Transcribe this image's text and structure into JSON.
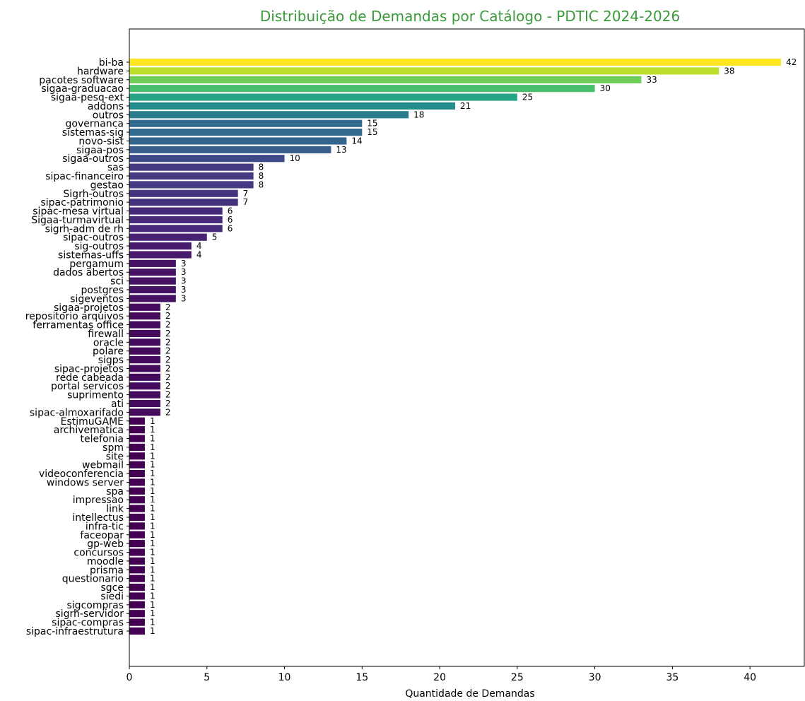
{
  "chart_data": {
    "type": "bar",
    "orientation": "horizontal",
    "title": "Distribuição de Demandas por Catálogo - PDTIC 2024-2026",
    "xlabel": "Quantidade de Demandas",
    "ylabel": "",
    "xlim": [
      0,
      43.5
    ],
    "xticks": [
      0,
      5,
      10,
      15,
      20,
      25,
      30,
      35,
      40
    ],
    "grid": false,
    "colormap": "viridis",
    "title_color": "#3a9a3a",
    "categories": [
      "bi-ba",
      "hardware",
      "pacotes software",
      "sigaa-graduacao",
      "sigaa-pesq-ext",
      "addons",
      "outros",
      "governanca",
      "sistemas-sig",
      "novo-sist",
      "sigaa-pos",
      "sigaa-outros",
      "sas",
      "sipac-financeiro",
      "gestao",
      "Sigrh-outros",
      "sipac-patrimonio",
      "sipac-mesa virtual",
      "Sigaa-turmavirtual",
      "sigrh-adm de rh",
      "sipac-outros",
      "sig-outros",
      "sistemas-uffs",
      "pergamum",
      "dados abertos",
      "sci",
      "postgres",
      "sigeventos",
      "sigaa-projetos",
      "repositorio arquivos",
      "ferramentas office",
      "firewall",
      "oracle",
      "polare",
      "sigps",
      "sipac-projetos",
      "rede cabeada",
      "portal servicos",
      "suprimento",
      "ati",
      "sipac-almoxarifado",
      "EstimuGAME",
      "archivematica",
      "telefonia",
      "spm",
      "site",
      "webmail",
      "videoconferencia",
      "windows server",
      "spa",
      "impressao",
      "link",
      "intellectus",
      "infra-tic",
      "faceopar",
      "gp-web",
      "concursos",
      "moodle",
      "prisma",
      "questionario",
      "sgce",
      "siedi",
      "sigcompras",
      "sigrh-servidor",
      "sipac-compras",
      "sipac-infraestrutura"
    ],
    "values": [
      42,
      38,
      33,
      30,
      25,
      21,
      18,
      15,
      15,
      14,
      13,
      10,
      8,
      8,
      8,
      7,
      7,
      6,
      6,
      6,
      5,
      4,
      4,
      3,
      3,
      3,
      3,
      3,
      2,
      2,
      2,
      2,
      2,
      2,
      2,
      2,
      2,
      2,
      2,
      2,
      2,
      1,
      1,
      1,
      1,
      1,
      1,
      1,
      1,
      1,
      1,
      1,
      1,
      1,
      1,
      1,
      1,
      1,
      1,
      1,
      1,
      1,
      1,
      1,
      1,
      1
    ]
  }
}
